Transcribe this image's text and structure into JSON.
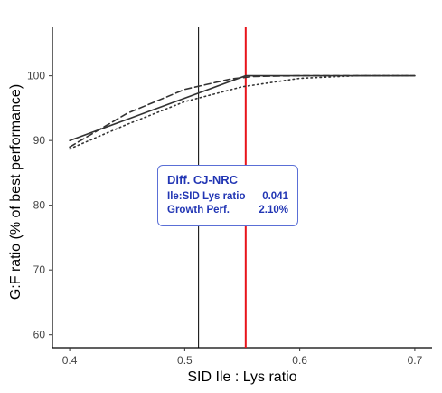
{
  "chart_data": {
    "type": "line",
    "title": "",
    "xlabel": "SID Ile : Lys ratio",
    "ylabel": "G:F ratio (% of best performance)",
    "xlim": [
      0.385,
      0.715
    ],
    "ylim": [
      58.0,
      107.5
    ],
    "x_ticks": [
      0.4,
      0.5,
      0.6,
      0.7
    ],
    "x_tick_labels": [
      "0.4",
      "0.5",
      "0.6",
      "0.7"
    ],
    "y_ticks": [
      60,
      70,
      80,
      90,
      100
    ],
    "y_tick_labels": [
      "60",
      "70",
      "80",
      "90",
      "100"
    ],
    "grid": false,
    "series": [
      {
        "style": "solid",
        "x": [
          0.4,
          0.553,
          0.7
        ],
        "y": [
          90.0,
          100.0,
          100.0
        ]
      },
      {
        "style": "dashed",
        "x": [
          0.4,
          0.45,
          0.5,
          0.54,
          0.56,
          0.6,
          0.7
        ],
        "y": [
          89.0,
          94.2,
          97.9,
          99.5,
          99.9,
          100.0,
          100.0
        ]
      },
      {
        "style": "dotted",
        "x": [
          0.4,
          0.45,
          0.5,
          0.55,
          0.6,
          0.65,
          0.7
        ],
        "y": [
          88.7,
          92.5,
          96.0,
          98.3,
          99.6,
          100.0,
          100.0
        ]
      }
    ],
    "vlines": [
      {
        "x": 0.512,
        "color": "#000000"
      },
      {
        "x": 0.553,
        "color": "#e8141b"
      }
    ],
    "annotation": {
      "title": "Diff. CJ-NRC",
      "rows": [
        {
          "label": "Ile:SID Lys ratio",
          "value": "0.041"
        },
        {
          "label": "Growth Perf.",
          "value": "2.10%"
        }
      ],
      "color": "#2236b4"
    }
  }
}
